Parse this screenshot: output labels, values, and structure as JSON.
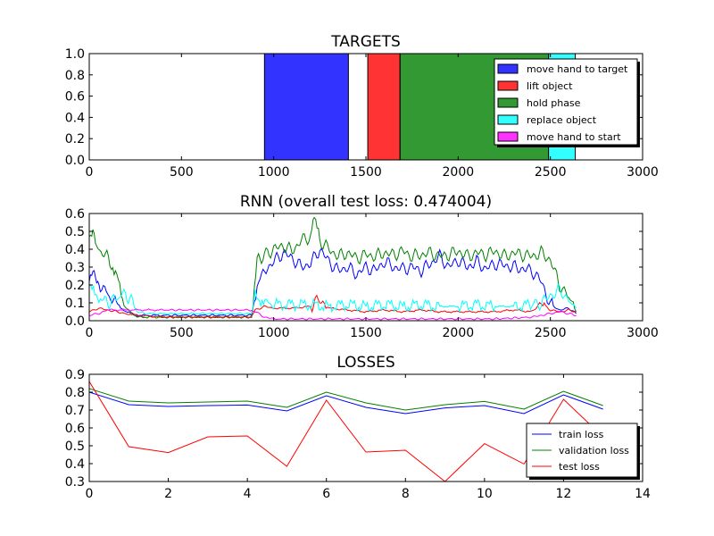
{
  "chart_data": [
    {
      "type": "area",
      "title": "TARGETS",
      "xlim": [
        0,
        3000
      ],
      "ylim": [
        0,
        1
      ],
      "xticks": [
        "0",
        "500",
        "1000",
        "1500",
        "2000",
        "2500",
        "3000"
      ],
      "yticks": [
        "0.0",
        "0.2",
        "0.4",
        "0.6",
        "0.8",
        "1.0"
      ],
      "legend_position": "top-right",
      "series": [
        {
          "name": "move hand to target",
          "color": "#0000ff",
          "intervals": [
            [
              950,
              1405
            ]
          ]
        },
        {
          "name": "lift object",
          "color": "#ff0000",
          "intervals": [
            [
              1510,
              1685
            ]
          ]
        },
        {
          "name": "hold phase",
          "color": "#008000",
          "intervals": [
            [
              1685,
              2490
            ]
          ]
        },
        {
          "name": "replace object",
          "color": "#00ffff",
          "intervals": [
            [
              2490,
              2635
            ]
          ]
        },
        {
          "name": "move hand to start",
          "color": "#ff00ff",
          "intervals": []
        }
      ]
    },
    {
      "type": "line",
      "title": "RNN (overall test loss: 0.474004)",
      "xlim": [
        0,
        3000
      ],
      "ylim": [
        0,
        0.6
      ],
      "xticks": [
        "0",
        "500",
        "1000",
        "1500",
        "2000",
        "2500",
        "3000"
      ],
      "yticks": [
        "0.0",
        "0.1",
        "0.2",
        "0.3",
        "0.4",
        "0.5",
        "0.6"
      ],
      "series": [
        {
          "color": "#0000ff",
          "points": [
            [
              0,
              0.22
            ],
            [
              20,
              0.3
            ],
            [
              40,
              0.25
            ],
            [
              60,
              0.2
            ],
            [
              100,
              0.15
            ],
            [
              140,
              0.1
            ],
            [
              200,
              0.05
            ],
            [
              260,
              0.03
            ],
            [
              400,
              0.03
            ],
            [
              600,
              0.03
            ],
            [
              800,
              0.03
            ],
            [
              880,
              0.03
            ],
            [
              910,
              0.2
            ],
            [
              950,
              0.28
            ],
            [
              1000,
              0.33
            ],
            [
              1050,
              0.38
            ],
            [
              1100,
              0.35
            ],
            [
              1150,
              0.3
            ],
            [
              1200,
              0.32
            ],
            [
              1250,
              0.4
            ],
            [
              1300,
              0.33
            ],
            [
              1350,
              0.28
            ],
            [
              1400,
              0.3
            ],
            [
              1450,
              0.26
            ],
            [
              1500,
              0.3
            ],
            [
              1550,
              0.28
            ],
            [
              1600,
              0.33
            ],
            [
              1650,
              0.3
            ],
            [
              1700,
              0.29
            ],
            [
              1750,
              0.3
            ],
            [
              1800,
              0.28
            ],
            [
              1850,
              0.32
            ],
            [
              1900,
              0.36
            ],
            [
              1950,
              0.3
            ],
            [
              2000,
              0.34
            ],
            [
              2050,
              0.3
            ],
            [
              2100,
              0.33
            ],
            [
              2150,
              0.29
            ],
            [
              2200,
              0.32
            ],
            [
              2250,
              0.31
            ],
            [
              2300,
              0.3
            ],
            [
              2350,
              0.29
            ],
            [
              2400,
              0.28
            ],
            [
              2450,
              0.22
            ],
            [
              2500,
              0.09
            ],
            [
              2550,
              0.06
            ],
            [
              2600,
              0.07
            ],
            [
              2640,
              0.04
            ]
          ]
        },
        {
          "color": "#008000",
          "points": [
            [
              0,
              0.44
            ],
            [
              20,
              0.48
            ],
            [
              40,
              0.4
            ],
            [
              80,
              0.38
            ],
            [
              120,
              0.32
            ],
            [
              150,
              0.25
            ],
            [
              180,
              0.1
            ],
            [
              220,
              0.05
            ],
            [
              260,
              0.02
            ],
            [
              400,
              0.02
            ],
            [
              600,
              0.02
            ],
            [
              800,
              0.02
            ],
            [
              880,
              0.02
            ],
            [
              910,
              0.33
            ],
            [
              950,
              0.37
            ],
            [
              1000,
              0.4
            ],
            [
              1050,
              0.42
            ],
            [
              1100,
              0.39
            ],
            [
              1150,
              0.45
            ],
            [
              1200,
              0.47
            ],
            [
              1220,
              0.57
            ],
            [
              1250,
              0.45
            ],
            [
              1300,
              0.4
            ],
            [
              1350,
              0.36
            ],
            [
              1400,
              0.38
            ],
            [
              1450,
              0.35
            ],
            [
              1500,
              0.37
            ],
            [
              1550,
              0.36
            ],
            [
              1600,
              0.38
            ],
            [
              1650,
              0.37
            ],
            [
              1700,
              0.39
            ],
            [
              1750,
              0.36
            ],
            [
              1800,
              0.37
            ],
            [
              1850,
              0.38
            ],
            [
              1900,
              0.36
            ],
            [
              1950,
              0.37
            ],
            [
              2000,
              0.39
            ],
            [
              2050,
              0.36
            ],
            [
              2100,
              0.38
            ],
            [
              2150,
              0.37
            ],
            [
              2200,
              0.39
            ],
            [
              2250,
              0.36
            ],
            [
              2300,
              0.38
            ],
            [
              2350,
              0.37
            ],
            [
              2400,
              0.36
            ],
            [
              2450,
              0.38
            ],
            [
              2500,
              0.34
            ],
            [
              2550,
              0.2
            ],
            [
              2600,
              0.13
            ],
            [
              2640,
              0.05
            ]
          ]
        },
        {
          "color": "#ff0000",
          "points": [
            [
              0,
              0.05
            ],
            [
              50,
              0.07
            ],
            [
              100,
              0.06
            ],
            [
              150,
              0.05
            ],
            [
              200,
              0.04
            ],
            [
              260,
              0.03
            ],
            [
              400,
              0.02
            ],
            [
              600,
              0.02
            ],
            [
              800,
              0.02
            ],
            [
              880,
              0.02
            ],
            [
              900,
              0.06
            ],
            [
              950,
              0.08
            ],
            [
              1000,
              0.07
            ],
            [
              1100,
              0.07
            ],
            [
              1200,
              0.08
            ],
            [
              1250,
              0.12
            ],
            [
              1300,
              0.07
            ],
            [
              1400,
              0.06
            ],
            [
              1500,
              0.05
            ],
            [
              1600,
              0.06
            ],
            [
              1700,
              0.05
            ],
            [
              1800,
              0.06
            ],
            [
              1900,
              0.05
            ],
            [
              2000,
              0.05
            ],
            [
              2100,
              0.05
            ],
            [
              2200,
              0.05
            ],
            [
              2300,
              0.06
            ],
            [
              2400,
              0.05
            ],
            [
              2450,
              0.1
            ],
            [
              2500,
              0.06
            ],
            [
              2550,
              0.05
            ],
            [
              2600,
              0.06
            ],
            [
              2640,
              0.05
            ]
          ]
        },
        {
          "color": "#00ffff",
          "points": [
            [
              0,
              0.18
            ],
            [
              30,
              0.15
            ],
            [
              60,
              0.13
            ],
            [
              100,
              0.1
            ],
            [
              140,
              0.12
            ],
            [
              180,
              0.15
            ],
            [
              220,
              0.13
            ],
            [
              260,
              0.05
            ],
            [
              300,
              0.04
            ],
            [
              600,
              0.04
            ],
            [
              880,
              0.04
            ],
            [
              900,
              0.15
            ],
            [
              930,
              0.12
            ],
            [
              960,
              0.1
            ],
            [
              1000,
              0.09
            ],
            [
              1100,
              0.09
            ],
            [
              1200,
              0.09
            ],
            [
              1300,
              0.08
            ],
            [
              1400,
              0.09
            ],
            [
              1500,
              0.08
            ],
            [
              1600,
              0.09
            ],
            [
              1700,
              0.08
            ],
            [
              1800,
              0.09
            ],
            [
              1900,
              0.08
            ],
            [
              2000,
              0.08
            ],
            [
              2100,
              0.09
            ],
            [
              2200,
              0.08
            ],
            [
              2300,
              0.08
            ],
            [
              2400,
              0.09
            ],
            [
              2450,
              0.1
            ],
            [
              2500,
              0.14
            ],
            [
              2550,
              0.17
            ],
            [
              2600,
              0.12
            ],
            [
              2640,
              0.07
            ]
          ]
        },
        {
          "color": "#ff00ff",
          "points": [
            [
              0,
              0.03
            ],
            [
              50,
              0.04
            ],
            [
              100,
              0.06
            ],
            [
              200,
              0.06
            ],
            [
              300,
              0.06
            ],
            [
              400,
              0.06
            ],
            [
              600,
              0.06
            ],
            [
              800,
              0.06
            ],
            [
              880,
              0.06
            ],
            [
              900,
              0.05
            ],
            [
              950,
              0.02
            ],
            [
              1000,
              0.01
            ],
            [
              1200,
              0.01
            ],
            [
              1400,
              0.01
            ],
            [
              1600,
              0.01
            ],
            [
              1800,
              0.01
            ],
            [
              2000,
              0.01
            ],
            [
              2200,
              0.01
            ],
            [
              2400,
              0.02
            ],
            [
              2450,
              0.03
            ],
            [
              2500,
              0.04
            ],
            [
              2550,
              0.05
            ],
            [
              2600,
              0.04
            ],
            [
              2640,
              0.03
            ]
          ]
        }
      ]
    },
    {
      "type": "line",
      "title": "LOSSES",
      "xlim": [
        0,
        14
      ],
      "ylim": [
        0.3,
        0.9
      ],
      "xticks": [
        "0",
        "2",
        "4",
        "6",
        "8",
        "10",
        "12",
        "14"
      ],
      "yticks": [
        "0.3",
        "0.4",
        "0.5",
        "0.6",
        "0.7",
        "0.8",
        "0.9"
      ],
      "legend_position": "lower-right",
      "x": [
        0,
        1,
        2,
        3,
        4,
        5,
        6,
        7,
        8,
        9,
        10,
        11,
        12,
        13
      ],
      "series": [
        {
          "name": "train loss",
          "color": "#0000ff",
          "values": [
            0.8,
            0.73,
            0.72,
            0.725,
            0.728,
            0.695,
            0.78,
            0.715,
            0.68,
            0.712,
            0.725,
            0.68,
            0.785,
            0.705
          ]
        },
        {
          "name": "validation loss",
          "color": "#008000",
          "values": [
            0.82,
            0.75,
            0.74,
            0.745,
            0.75,
            0.715,
            0.8,
            0.74,
            0.7,
            0.73,
            0.748,
            0.705,
            0.805,
            0.725
          ]
        },
        {
          "name": "test loss",
          "color": "#ff0000",
          "values": [
            0.86,
            0.495,
            0.462,
            0.55,
            0.555,
            0.385,
            0.755,
            0.465,
            0.475,
            0.3,
            0.512,
            0.398,
            0.76,
            0.55
          ]
        }
      ]
    }
  ]
}
